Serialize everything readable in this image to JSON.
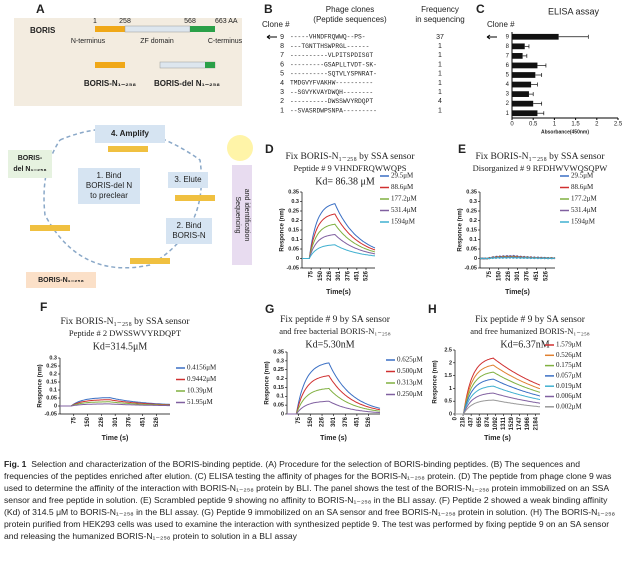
{
  "panel_a": {
    "label": "A",
    "protein": "BORIS",
    "positions": [
      1,
      258,
      568
    ],
    "end_label": "663 AA",
    "domains": [
      "N-terminus",
      "ZF domain",
      "C-terminus"
    ],
    "fragment_n": "BORIS-N₁₋₂₅₈",
    "fragment_del": "BORIS-del N₁₋₂₅₈",
    "step_amplify": "4. Amplify",
    "step_preclear": [
      "1. Bind",
      "BORIS-del N",
      "to preclear"
    ],
    "step_elute": "3. Elute",
    "step_bind": [
      "2. Bind",
      "BORIS-N"
    ],
    "side_del": [
      "BORIS-",
      "del N₁₋₂₅₈"
    ],
    "bottom_n": "BORIS-N₁₋₂₅₈",
    "sequencing": [
      "Sequencing",
      "and identification"
    ]
  },
  "panel_b": {
    "label": "B",
    "headers": {
      "clone": "Clone #",
      "sequences": [
        "Phage clones",
        "(Peptide sequences)"
      ],
      "frequency": [
        "Frequency",
        "in sequencing"
      ]
    },
    "rows": [
      {
        "clone": 9,
        "sequence": "-----VHNDFRQWWQ--PS-",
        "frequency": 37
      },
      {
        "clone": 8,
        "sequence": "---TGNTTHSWPRGL------",
        "frequency": 1
      },
      {
        "clone": 7,
        "sequence": "----------VLPITSPDISGT",
        "frequency": 1
      },
      {
        "clone": 6,
        "sequence": "---------GSAPLLTVDT-SK-",
        "frequency": 1
      },
      {
        "clone": 5,
        "sequence": "----------SQTVLYSPNRAT-",
        "frequency": 1
      },
      {
        "clone": 4,
        "sequence": "TMDGVYFVAKHW----------",
        "frequency": 1
      },
      {
        "clone": 3,
        "sequence": "--SGVYKVAYDWQH--------",
        "frequency": 1
      },
      {
        "clone": 2,
        "sequence": "----------DWSSWVYRDQPT",
        "frequency": 4
      },
      {
        "clone": 1,
        "sequence": "--SVASRDWPSNPA---------",
        "frequency": 1
      }
    ]
  },
  "panel_c": {
    "label": "C",
    "title": "ELISA assay",
    "ylabel": "Clone #",
    "xlabel": "Absorbance(450nm)",
    "categories": [
      9,
      8,
      7,
      6,
      5,
      4,
      3,
      2,
      1
    ],
    "values": [
      1.1,
      0.3,
      0.25,
      0.6,
      0.55,
      0.45,
      0.4,
      0.5,
      0.6
    ],
    "errors": [
      0.7,
      0.1,
      0.1,
      0.2,
      0.15,
      0.15,
      0.1,
      0.2,
      0.15
    ],
    "color": "#111111",
    "xlim": [
      0,
      2.5
    ],
    "xticks": [
      0,
      0.5,
      1,
      1.5,
      2,
      2.5
    ]
  },
  "panel_d": {
    "label": "D",
    "title_lines": [
      {
        "text": "Fix BORIS-N₁₋₂₅₈ by SSA sensor",
        "color": "#8b4a1c"
      },
      {
        "text": "Peptide # 9  VHNDFRQWWQPS",
        "color": "#2b8fd0"
      }
    ],
    "kd": "Kd= 86.38 μM",
    "ylabel": "Responce (nm)",
    "xlabel": "Time(s)",
    "ylim": [
      -0.05,
      0.35
    ],
    "yticks": [
      -0.05,
      0,
      0.05,
      0.1,
      0.15,
      0.2,
      0.25,
      0.3,
      0.35
    ],
    "xlim": [
      0,
      600
    ],
    "xticks": [
      75,
      150,
      226,
      301,
      376,
      451,
      526
    ],
    "legend": [
      "29.5μM",
      "88.6μM",
      "177.2μM",
      "531.4μM",
      "1594μM"
    ],
    "colors": [
      "#3a6fc4",
      "#d03030",
      "#80b040",
      "#8060a0",
      "#40b0d0"
    ]
  },
  "panel_e": {
    "label": "E",
    "title_lines": [
      {
        "text": "Fix BORIS-N₁₋₂₅₈ by SSA sensor",
        "color": "#8b4a1c"
      },
      {
        "text": "Disorganized # 9  RFDHWVWQSQPW",
        "color": "#7a8a1c"
      }
    ],
    "ylabel": "Responce (nm)",
    "xlabel": "Time(s)",
    "ylim": [
      -0.05,
      0.35
    ],
    "yticks": [
      -0.05,
      0,
      0.05,
      0.1,
      0.15,
      0.2,
      0.25,
      0.3,
      0.35
    ],
    "xlim": [
      0,
      600
    ],
    "xticks": [
      75,
      150,
      226,
      301,
      376,
      451,
      526
    ],
    "legend": [
      "29.5μM",
      "88.6μM",
      "177.2μM",
      "531.4μM",
      "1594μM"
    ],
    "colors": [
      "#3a6fc4",
      "#d03030",
      "#80b040",
      "#8060a0",
      "#40b0d0"
    ]
  },
  "panel_f": {
    "label": "F",
    "title_lines": [
      {
        "text": "Fix BORIS-N₁₋₂₅₈ by SSA sensor",
        "color": "#8b4a1c"
      },
      {
        "text": "Peptide # 2  DWSSWVYRDQPT",
        "color": "#222222"
      }
    ],
    "kd": "Kd=314.5μM",
    "ylabel": "Responce (nm)",
    "xlabel": "Time (s)",
    "ylim": [
      -0.05,
      0.3
    ],
    "yticks": [
      -0.05,
      0,
      0.05,
      0.1,
      0.15,
      0.2,
      0.25,
      0.3
    ],
    "xlim": [
      0,
      600
    ],
    "xticks": [
      75,
      150,
      226,
      301,
      376,
      451,
      526
    ],
    "legend": [
      "0.4156μM",
      "0.9442μM",
      "10.39μM",
      "51.95μM"
    ],
    "colors": [
      "#3a6fc4",
      "#d03030",
      "#80b040",
      "#8060a0"
    ]
  },
  "panel_g": {
    "label": "G",
    "title_lines": [
      {
        "text": "Fix peptide # 9 by SA sensor",
        "color": "#2b8fd0"
      },
      {
        "text": "and free bacterial BORIS-N₁₋₂₅₈",
        "color": "#8b4a1c"
      }
    ],
    "kd": "Kd=5.30nM",
    "ylabel": "Responce (nm)",
    "xlabel": "Time (s)",
    "ylim": [
      0,
      0.35
    ],
    "yticks": [
      0,
      0.05,
      0.1,
      0.15,
      0.2,
      0.25,
      0.3,
      0.35
    ],
    "xlim": [
      0,
      600
    ],
    "xticks": [
      75,
      150,
      226,
      301,
      376,
      451,
      526
    ],
    "legend": [
      "0.625μM",
      "0.500μM",
      "0.313μM",
      "0.250μM"
    ],
    "colors": [
      "#3a6fc4",
      "#d03030",
      "#80b040",
      "#8060a0"
    ]
  },
  "panel_h": {
    "label": "H",
    "title_lines": [
      {
        "text": "Fix peptide # 9 by SA sensor",
        "color": "#2b8fd0"
      },
      {
        "text": "and free humanized BORIS-N₁₋₂₅₈",
        "color": "#7a3ab0"
      }
    ],
    "kd": "Kd=6.37nM",
    "ylabel": "Responce (nm)",
    "xlabel": "Time (s)",
    "ylim": [
      0,
      2.5
    ],
    "yticks": [
      0,
      0.5,
      1,
      1.5,
      2,
      2.5
    ],
    "xlim": [
      0,
      2300
    ],
    "xticks": [
      0,
      218,
      437,
      655,
      874,
      1092,
      1311,
      1529,
      1747,
      1966,
      2184
    ],
    "legend": [
      "1.579μM",
      "0.526μM",
      "0.175μM",
      "0.057μM",
      "0.019μM",
      "0.006μM",
      "0.002μM"
    ],
    "colors": [
      "#d03030",
      "#e08030",
      "#80b040",
      "#3a6fc4",
      "#40b0d0",
      "#8060a0",
      "#999999"
    ]
  },
  "caption": {
    "label": "Fig. 1",
    "title": "Selection and characterization of the BORIS-binding peptide.",
    "body": "(A) Procedure for the selection of BORIS-binding peptides. (B) The sequences and frequencies of the peptides enriched after elution. (C) ELISA testing the affinity of phages for the BORIS-N₁₋₂₅₈ protein. (D) The peptide from phage clone 9 was used to determine the affinity of the interaction with BORIS-N₁₋₂₅₈ protein by BLI. The panel shows the test of the BORIS-N₁₋₂₅₈ protein immobilized on an SSA sensor and free peptide in solution. (E) Scrambled peptide 9 showing no affinity to BORIS-N₁₋₂₅₈ in the BLI assay. (F) Peptide 2 showed a weak binding affinity (Kd) of 314.5 μM to BORIS-N₁₋₂₅₈ in the BLI assay. (G) Peptide 9 immobilized on an SA sensor and free BORIS-N₁₋₂₅₈ protein in solution. (H) The BORIS-N₁₋₂₅₈ protein purified from HEK293 cells was used to examine the interaction with synthesized peptide 9. The test was performed by fixing peptide 9 on an SA sensor and releasing the humanized BORIS-N₁₋₂₅₈ protein to solution in a BLI assay"
  }
}
